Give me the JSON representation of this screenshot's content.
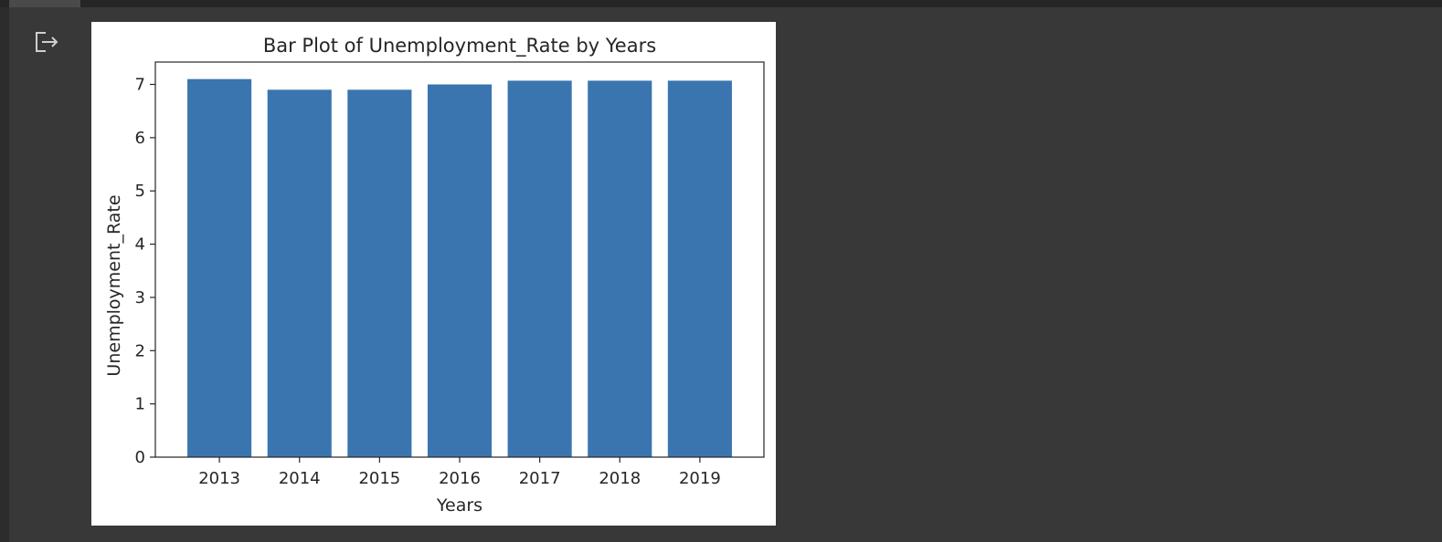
{
  "colors": {
    "background": "#383838",
    "bar": "#3a75af",
    "output_background": "#ffffff"
  },
  "output": {
    "icon": "output-redirect-icon"
  },
  "chart_data": {
    "type": "bar",
    "title": "Bar Plot of Unemployment_Rate by Years",
    "xlabel": "Years",
    "ylabel": "Unemployment_Rate",
    "categories": [
      "2013",
      "2014",
      "2015",
      "2016",
      "2017",
      "2018",
      "2019"
    ],
    "values": [
      7.1,
      6.9,
      6.9,
      7.0,
      7.07,
      7.07,
      7.07
    ],
    "ylim": [
      0,
      7.42
    ],
    "yticks": [
      "0",
      "1",
      "2",
      "3",
      "4",
      "5",
      "6",
      "7"
    ],
    "grid": false,
    "legend": "none"
  }
}
